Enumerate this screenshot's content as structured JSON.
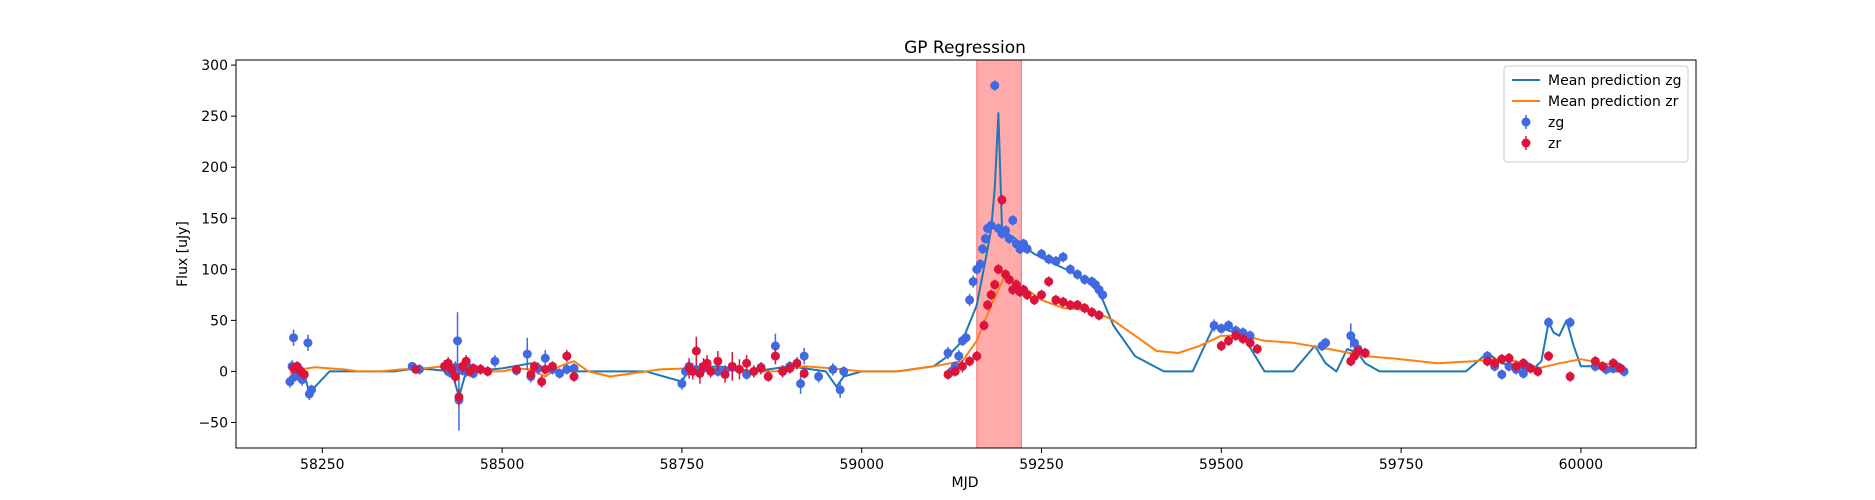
{
  "chart_data": {
    "type": "scatter",
    "title": "GP Regression",
    "xlabel": "MJD",
    "ylabel": "Flux [uJy]",
    "xlim": [
      58130,
      60160
    ],
    "ylim": [
      -75,
      305
    ],
    "xticks": [
      58250,
      58500,
      58750,
      59000,
      59250,
      59500,
      59750,
      60000
    ],
    "yticks": [
      -50,
      0,
      50,
      100,
      150,
      200,
      250,
      300
    ],
    "grid": false,
    "legend_position": "top-right",
    "colors": {
      "zg_line": "#1f77b4",
      "zr_line": "#ff7f0e",
      "zg_points": "#4169e1",
      "zr_points": "#dc143c",
      "span": "#ff0000"
    },
    "highlight_span": {
      "x_start": 59160,
      "x_end": 59222
    },
    "legend": [
      {
        "label": "Mean prediction zg",
        "kind": "line",
        "color": "#1f77b4"
      },
      {
        "label": "Mean prediction zr",
        "kind": "line",
        "color": "#ff7f0e"
      },
      {
        "label": "zg",
        "kind": "errorbar",
        "color": "#4169e1"
      },
      {
        "label": "zr",
        "kind": "errorbar",
        "color": "#dc143c"
      }
    ],
    "series": [
      {
        "name": "Mean prediction zg",
        "kind": "line",
        "color": "#1f77b4",
        "x": [
          58205,
          58215,
          58225,
          58232,
          58240,
          58260,
          58300,
          58350,
          58380,
          58400,
          58430,
          58440,
          58448,
          58460,
          58500,
          58540,
          58560,
          58600,
          58650,
          58700,
          58750,
          58760,
          58800,
          58850,
          58900,
          58950,
          58965,
          58975,
          59000,
          59050,
          59100,
          59120,
          59140,
          59160,
          59175,
          59180,
          59185,
          59190,
          59195,
          59200,
          59210,
          59220,
          59240,
          59260,
          59290,
          59320,
          59335,
          59350,
          59380,
          59420,
          59460,
          59490,
          59510,
          59530,
          59560,
          59600,
          59630,
          59645,
          59660,
          59675,
          59690,
          59700,
          59720,
          59760,
          59800,
          59840,
          59870,
          59890,
          59910,
          59930,
          59945,
          59955,
          59962,
          59970,
          59980,
          59990,
          60000,
          60020,
          60040,
          60060
        ],
        "y": [
          -8,
          3,
          -2,
          -22,
          -15,
          0,
          0,
          0,
          3,
          2,
          0,
          -25,
          -5,
          0,
          3,
          8,
          2,
          0,
          0,
          0,
          -10,
          2,
          5,
          0,
          5,
          0,
          -15,
          -5,
          0,
          0,
          5,
          15,
          30,
          65,
          120,
          140,
          180,
          253,
          140,
          135,
          132,
          126,
          115,
          108,
          98,
          85,
          70,
          45,
          15,
          0,
          0,
          45,
          40,
          35,
          0,
          0,
          25,
          8,
          0,
          22,
          18,
          8,
          0,
          0,
          0,
          0,
          18,
          8,
          5,
          0,
          10,
          48,
          38,
          35,
          50,
          25,
          5,
          5,
          0,
          0
        ]
      },
      {
        "name": "Mean prediction zr",
        "kind": "line",
        "color": "#ff7f0e",
        "x": [
          58205,
          58220,
          58240,
          58260,
          58280,
          58300,
          58330,
          58360,
          58390,
          58420,
          58440,
          58460,
          58480,
          58500,
          58520,
          58540,
          58560,
          58580,
          58600,
          58620,
          58650,
          58680,
          58720,
          58760,
          58800,
          58840,
          58880,
          58920,
          58960,
          59000,
          59050,
          59100,
          59140,
          59160,
          59180,
          59200,
          59220,
          59250,
          59280,
          59320,
          59350,
          59380,
          59410,
          59440,
          59470,
          59500,
          59530,
          59560,
          59600,
          59650,
          59700,
          59750,
          59800,
          59850,
          59880,
          59910,
          59940,
          59970,
          60000,
          60030,
          60060
        ],
        "y": [
          -2,
          2,
          4,
          3,
          2,
          0,
          0,
          2,
          3,
          5,
          4,
          3,
          0,
          0,
          3,
          2,
          -5,
          5,
          10,
          0,
          -5,
          -2,
          2,
          3,
          2,
          0,
          0,
          5,
          3,
          0,
          0,
          5,
          10,
          30,
          65,
          95,
          85,
          70,
          62,
          60,
          50,
          35,
          20,
          18,
          25,
          35,
          35,
          30,
          28,
          22,
          15,
          12,
          8,
          10,
          12,
          10,
          3,
          8,
          12,
          8,
          5
        ]
      },
      {
        "name": "zg",
        "kind": "errorbar",
        "color": "#4169e1",
        "x": [
          58205,
          58208,
          58210,
          58212,
          58215,
          58218,
          58222,
          58230,
          58232,
          58235,
          58375,
          58385,
          58420,
          58425,
          58430,
          58435,
          58438,
          58440,
          58442,
          58445,
          58450,
          58455,
          58460,
          58470,
          58490,
          58520,
          58535,
          58540,
          58550,
          58560,
          58570,
          58580,
          58590,
          58600,
          58750,
          58755,
          58760,
          58770,
          58780,
          58800,
          58810,
          58820,
          58840,
          58860,
          58880,
          58890,
          58900,
          58915,
          58920,
          58940,
          58960,
          58970,
          58975,
          59120,
          59125,
          59130,
          59135,
          59140,
          59145,
          59150,
          59155,
          59160,
          59165,
          59168,
          59172,
          59175,
          59180,
          59185,
          59190,
          59195,
          59200,
          59205,
          59210,
          59215,
          59220,
          59225,
          59230,
          59250,
          59260,
          59270,
          59280,
          59290,
          59300,
          59310,
          59320,
          59325,
          59330,
          59335,
          59490,
          59500,
          59510,
          59520,
          59530,
          59540,
          59640,
          59645,
          59680,
          59685,
          59690,
          59700,
          59870,
          59880,
          59890,
          59900,
          59910,
          59920,
          59925,
          59955,
          59985,
          60020,
          60035,
          60045,
          60050,
          60060
        ],
        "y": [
          -10,
          5,
          33,
          -5,
          -3,
          2,
          -8,
          28,
          -22,
          -18,
          5,
          2,
          5,
          0,
          -2,
          4,
          30,
          -28,
          2,
          1,
          0,
          3,
          -2,
          2,
          10,
          1,
          17,
          -5,
          3,
          13,
          2,
          -2,
          2,
          3,
          -12,
          0,
          5,
          2,
          3,
          0,
          1,
          4,
          -3,
          4,
          25,
          0,
          5,
          -12,
          15,
          -5,
          2,
          -18,
          0,
          18,
          0,
          5,
          15,
          30,
          33,
          70,
          88,
          100,
          105,
          120,
          130,
          140,
          143,
          280,
          140,
          135,
          138,
          130,
          148,
          125,
          120,
          125,
          120,
          115,
          110,
          108,
          112,
          100,
          95,
          90,
          88,
          85,
          80,
          75,
          45,
          42,
          45,
          40,
          38,
          35,
          25,
          28,
          35,
          28,
          22,
          18,
          15,
          5,
          -3,
          5,
          2,
          -2,
          5,
          48,
          48,
          5,
          2,
          3,
          5,
          0
        ],
        "err": [
          6,
          6,
          8,
          5,
          5,
          5,
          6,
          8,
          6,
          5,
          4,
          5,
          6,
          5,
          5,
          6,
          28,
          30,
          5,
          5,
          5,
          5,
          5,
          5,
          6,
          5,
          16,
          6,
          6,
          8,
          5,
          5,
          5,
          5,
          6,
          5,
          5,
          5,
          5,
          5,
          5,
          5,
          5,
          5,
          12,
          6,
          5,
          10,
          8,
          6,
          6,
          8,
          5,
          6,
          5,
          5,
          6,
          5,
          5,
          6,
          6,
          5,
          5,
          5,
          5,
          5,
          5,
          5,
          5,
          5,
          5,
          5,
          5,
          5,
          5,
          5,
          5,
          5,
          5,
          5,
          5,
          5,
          5,
          5,
          5,
          5,
          5,
          5,
          6,
          5,
          5,
          5,
          5,
          5,
          5,
          5,
          12,
          8,
          6,
          5,
          5,
          5,
          5,
          5,
          5,
          5,
          5,
          5,
          5,
          5,
          5,
          5,
          5,
          5
        ]
      },
      {
        "name": "zr",
        "kind": "errorbar",
        "color": "#dc143c",
        "x": [
          58210,
          58215,
          58220,
          58225,
          58380,
          58420,
          58425,
          58430,
          58435,
          58440,
          58445,
          58450,
          58455,
          58460,
          58470,
          58480,
          58520,
          58540,
          58545,
          58555,
          58560,
          58570,
          58590,
          58600,
          58760,
          58765,
          58770,
          58775,
          58780,
          58785,
          58790,
          58800,
          58810,
          58820,
          58830,
          58840,
          58850,
          58860,
          58870,
          58880,
          58890,
          58900,
          58910,
          58920,
          59120,
          59130,
          59140,
          59150,
          59160,
          59170,
          59175,
          59180,
          59185,
          59190,
          59195,
          59200,
          59205,
          59210,
          59215,
          59220,
          59225,
          59230,
          59240,
          59250,
          59260,
          59270,
          59280,
          59290,
          59300,
          59310,
          59320,
          59330,
          59500,
          59510,
          59520,
          59530,
          59540,
          59550,
          59680,
          59685,
          59690,
          59700,
          59870,
          59880,
          59890,
          59900,
          59910,
          59920,
          59930,
          59940,
          59955,
          59985,
          60020,
          60030,
          60045,
          60055
        ],
        "y": [
          3,
          5,
          0,
          -3,
          2,
          5,
          8,
          2,
          -5,
          -25,
          5,
          10,
          0,
          3,
          2,
          0,
          2,
          -3,
          5,
          -10,
          2,
          5,
          15,
          -5,
          3,
          0,
          20,
          -2,
          5,
          8,
          0,
          10,
          -3,
          5,
          2,
          8,
          0,
          3,
          -5,
          15,
          0,
          3,
          8,
          -2,
          -3,
          0,
          5,
          10,
          15,
          45,
          65,
          75,
          85,
          100,
          168,
          95,
          90,
          80,
          85,
          78,
          80,
          75,
          70,
          75,
          88,
          70,
          68,
          65,
          65,
          62,
          58,
          55,
          25,
          30,
          35,
          32,
          28,
          22,
          10,
          15,
          20,
          18,
          10,
          8,
          12,
          13,
          5,
          8,
          3,
          0,
          15,
          -5,
          10,
          5,
          8,
          3
        ],
        "err": [
          5,
          5,
          5,
          5,
          4,
          6,
          6,
          6,
          6,
          8,
          6,
          6,
          5,
          5,
          5,
          5,
          4,
          5,
          5,
          6,
          5,
          5,
          6,
          5,
          10,
          8,
          14,
          10,
          8,
          8,
          6,
          10,
          8,
          14,
          10,
          8,
          6,
          6,
          5,
          8,
          6,
          5,
          6,
          5,
          5,
          5,
          6,
          5,
          5,
          5,
          5,
          5,
          5,
          5,
          5,
          5,
          5,
          5,
          5,
          5,
          5,
          5,
          5,
          5,
          5,
          5,
          5,
          5,
          5,
          5,
          5,
          5,
          5,
          5,
          5,
          5,
          5,
          5,
          5,
          5,
          5,
          5,
          5,
          5,
          5,
          5,
          5,
          5,
          5,
          5,
          5,
          5,
          5,
          5,
          5,
          5
        ]
      }
    ]
  }
}
